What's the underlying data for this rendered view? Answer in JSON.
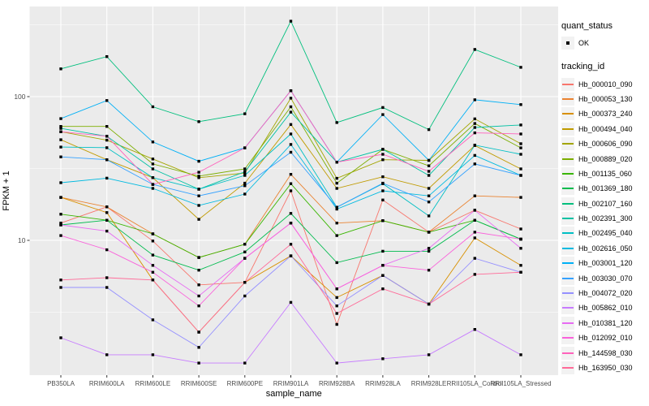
{
  "colors": {
    "page_bg": "#ffffff",
    "panel_bg": "#ebebeb",
    "grid_major": "#ffffff",
    "grid_minor": "#ffffff",
    "axis_text": "#4d4d4d",
    "axis_title": "#000000",
    "point": "#000000",
    "legend_key_bg": "#f2f2f2"
  },
  "chart_data": {
    "type": "line",
    "title": "",
    "xlabel": "sample_name",
    "ylabel": "FPKM + 1",
    "y_scale": "log10",
    "y_ticks": [
      100,
      10
    ],
    "y_tick_labels": [
      "100",
      "10"
    ],
    "y_minor_breaks": [
      3.162,
      31.62,
      316.2
    ],
    "ylim": [
      1.15,
      424
    ],
    "grid": true,
    "points": "black square at every observation",
    "legend_position": "right",
    "categories": [
      "PB350LA",
      "RRIM600LA",
      "RRIM600LE",
      "RRIM600SE",
      "RRIM600PE",
      "RRIM901LA",
      "RRIM928BA",
      "RRIM928LA",
      "RRIM928LE",
      "RRII105LA_Control",
      "RRII105LA_Stressed"
    ],
    "legend": {
      "quant_status_title": "quant_status",
      "quant_status_items": [
        {
          "label": "OK",
          "symbol": "black-point"
        }
      ],
      "tracking_title": "tracking_id"
    },
    "series": [
      {
        "name": "Hb_000010_090",
        "color": "#F8766D",
        "values": [
          13.2,
          17.1,
          9.9,
          4.9,
          5.1,
          22.1,
          2.6,
          19.1,
          11.4,
          16.2,
          12.0
        ]
      },
      {
        "name": "Hb_000053_130",
        "color": "#EA8331",
        "values": [
          19.9,
          17.1,
          11.1,
          7.6,
          9.4,
          28.8,
          13.2,
          13.7,
          11.4,
          20.4,
          19.9
        ]
      },
      {
        "name": "Hb_000373_240",
        "color": "#D89000",
        "values": [
          19.9,
          15.6,
          5.3,
          2.3,
          5.1,
          7.8,
          4.0,
          5.7,
          3.6,
          10.4,
          6.7
        ]
      },
      {
        "name": "Hb_000494_040",
        "color": "#C09B00",
        "values": [
          50.1,
          36.4,
          27.3,
          14.0,
          25.0,
          64.0,
          23.0,
          27.7,
          23.0,
          45.7,
          31.4
        ]
      },
      {
        "name": "Hb_000606_090",
        "color": "#A3A500",
        "values": [
          57.0,
          49.8,
          36.8,
          27.3,
          29.4,
          97.5,
          27.0,
          36.4,
          36.0,
          70.0,
          47.0
        ]
      },
      {
        "name": "Hb_000889_020",
        "color": "#7CAE00",
        "values": [
          62.0,
          62.0,
          34.0,
          28.0,
          31.4,
          85.0,
          25.0,
          43.0,
          33.0,
          65.0,
          44.0
        ]
      },
      {
        "name": "Hb_001135_060",
        "color": "#39B600",
        "values": [
          15.2,
          13.8,
          11.1,
          7.6,
          9.4,
          24.8,
          10.8,
          13.7,
          11.4,
          13.8,
          10.2
        ]
      },
      {
        "name": "Hb_001369_180",
        "color": "#00BB4E",
        "values": [
          12.8,
          13.8,
          7.9,
          6.2,
          8.3,
          15.4,
          7.0,
          8.4,
          8.4,
          13.8,
          10.2
        ]
      },
      {
        "name": "Hb_002107_160",
        "color": "#00BF7D",
        "values": [
          156,
          190,
          85,
          67,
          76,
          335,
          66,
          84,
          59,
          213,
          160
        ]
      },
      {
        "name": "Hb_002391_300",
        "color": "#00C1A3",
        "values": [
          60.1,
          53.0,
          31.4,
          22.7,
          30.0,
          78.0,
          35.0,
          43.0,
          28.3,
          61.0,
          63.5
        ]
      },
      {
        "name": "Hb_002495_040",
        "color": "#00BFC4",
        "values": [
          44.6,
          44.1,
          27.3,
          22.7,
          28.3,
          55.0,
          17.0,
          24.8,
          14.8,
          46.0,
          39.7
        ]
      },
      {
        "name": "Hb_002616_050",
        "color": "#00BAE0",
        "values": [
          25.2,
          27.1,
          23.0,
          17.5,
          21.0,
          46.5,
          16.5,
          22.1,
          20.4,
          39.0,
          28.3
        ]
      },
      {
        "name": "Hb_003001_120",
        "color": "#00B0F6",
        "values": [
          70.3,
          94.0,
          48.4,
          35.5,
          44.0,
          110.0,
          35.0,
          75.0,
          36.0,
          95.0,
          88.0
        ]
      },
      {
        "name": "Hb_003030_070",
        "color": "#35A2FF",
        "values": [
          38.1,
          36.4,
          24.5,
          20.4,
          24.0,
          41.0,
          17.0,
          25.0,
          18.5,
          34.0,
          28.3
        ]
      },
      {
        "name": "Hb_004072_020",
        "color": "#9590FF",
        "values": [
          4.7,
          4.7,
          2.8,
          1.8,
          4.1,
          7.8,
          3.5,
          5.7,
          3.6,
          7.5,
          6.0
        ]
      },
      {
        "name": "Hb_005862_010",
        "color": "#C77CFF",
        "values": [
          2.1,
          1.6,
          1.6,
          1.4,
          1.4,
          3.7,
          1.4,
          1.5,
          1.6,
          2.4,
          1.6
        ]
      },
      {
        "name": "Hb_010381_120",
        "color": "#E76BF3",
        "values": [
          12.8,
          11.6,
          6.7,
          4.1,
          7.5,
          13.2,
          4.6,
          6.7,
          8.8,
          16.2,
          8.8
        ]
      },
      {
        "name": "Hb_012092_010",
        "color": "#FA62DB",
        "values": [
          10.8,
          8.6,
          6.0,
          3.5,
          7.5,
          13.2,
          4.6,
          6.7,
          6.2,
          11.4,
          10.2
        ]
      },
      {
        "name": "Hb_144598_030",
        "color": "#FF62BC",
        "values": [
          57.0,
          53.0,
          24.5,
          29.8,
          44.0,
          110.0,
          35.0,
          39.7,
          30.2,
          56.0,
          55.0
        ]
      },
      {
        "name": "Hb_163950_030",
        "color": "#FF6A98",
        "values": [
          5.3,
          5.5,
          5.3,
          2.3,
          5.1,
          9.4,
          3.1,
          4.6,
          3.6,
          5.8,
          6.0
        ]
      }
    ]
  }
}
